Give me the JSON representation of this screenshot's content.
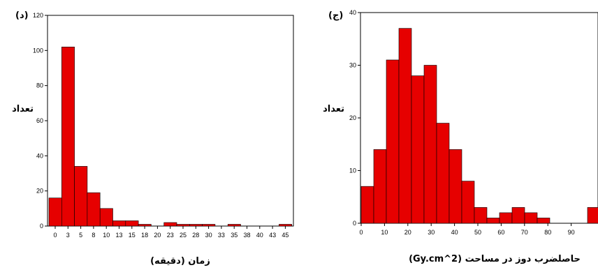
{
  "chart_data": [
    {
      "type": "bar",
      "panel_label": "(د)",
      "xlabel": "زمان (دقیقه)",
      "ylabel": "تعداد",
      "ylim": [
        0,
        120
      ],
      "yticks": [
        "0",
        "20",
        "40",
        "60",
        "80",
        "100",
        "120"
      ],
      "xticks": [
        "0",
        "3",
        "5",
        "8",
        "10",
        "13",
        "15",
        "18",
        "20",
        "23",
        "25",
        "28",
        "30",
        "33",
        "35",
        "38",
        "40",
        "43",
        "45"
      ],
      "grid": false,
      "bar_color": "#e60000",
      "values": [
        16,
        102,
        34,
        19,
        10,
        3,
        3,
        1,
        0,
        2,
        1,
        1,
        1,
        0,
        1,
        0,
        0,
        0,
        1
      ]
    },
    {
      "type": "bar",
      "panel_label": "(ج)",
      "xlabel": "حاصلضرب دوز در مساحت (Gy.cm^2)",
      "ylabel": "تعداد",
      "ylim": [
        0,
        40
      ],
      "yticks": [
        "0",
        "10",
        "20",
        "30",
        "40"
      ],
      "xticks": [
        "0",
        "10",
        "20",
        "30",
        "40",
        "50",
        "60",
        "70",
        "80",
        "90"
      ],
      "grid": false,
      "bar_color": "#e60000",
      "values": [
        7,
        14,
        31,
        37,
        28,
        30,
        19,
        14,
        8,
        3,
        1,
        2,
        3,
        2,
        1,
        0,
        0,
        0,
        3
      ]
    }
  ]
}
